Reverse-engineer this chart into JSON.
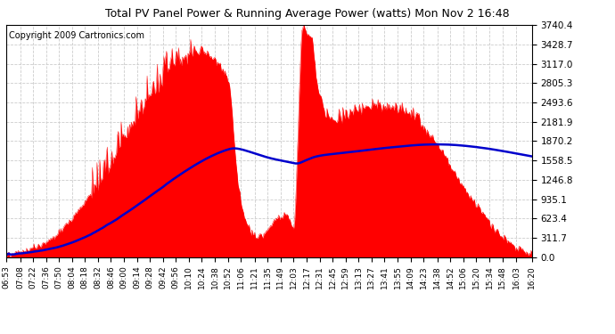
{
  "title": "Total PV Panel Power & Running Average Power (watts) Mon Nov 2 16:48",
  "copyright": "Copyright 2009 Cartronics.com",
  "background_color": "#ffffff",
  "plot_bg_color": "#ffffff",
  "yticks": [
    0.0,
    311.7,
    623.4,
    935.1,
    1246.8,
    1558.5,
    1870.2,
    2181.9,
    2493.6,
    2805.3,
    3117.0,
    3428.7,
    3740.4
  ],
  "ymax": 3740.4,
  "x_labels": [
    "06:53",
    "07:08",
    "07:22",
    "07:36",
    "07:50",
    "08:04",
    "08:18",
    "08:32",
    "08:46",
    "09:00",
    "09:14",
    "09:28",
    "09:42",
    "09:56",
    "10:10",
    "10:24",
    "10:38",
    "10:52",
    "11:06",
    "11:21",
    "11:35",
    "11:49",
    "12:03",
    "12:17",
    "12:31",
    "12:45",
    "12:59",
    "13:13",
    "13:27",
    "13:41",
    "13:55",
    "14:09",
    "14:23",
    "14:38",
    "14:52",
    "15:06",
    "15:20",
    "15:34",
    "15:48",
    "16:03",
    "16:20"
  ],
  "red_color": "#ff0000",
  "blue_color": "#0000cc",
  "grid_color": "#cccccc",
  "title_color": "#000000",
  "title_fontsize": 9,
  "copyright_fontsize": 7,
  "tick_fontsize": 6.5,
  "ytick_fontsize": 7.5
}
